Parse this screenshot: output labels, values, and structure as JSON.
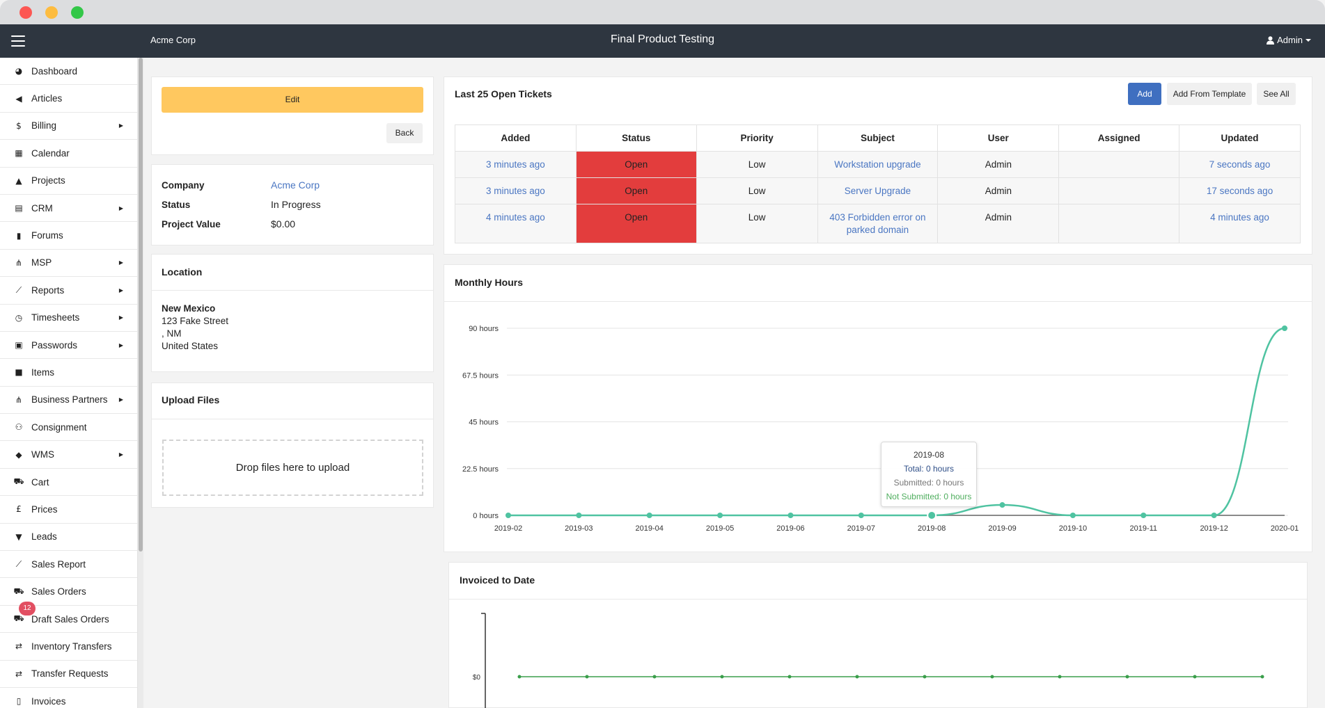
{
  "window": {
    "controls": {
      "close": "#fc5753",
      "minimize": "#fdbc40",
      "zoom": "#33c748"
    }
  },
  "topnav": {
    "brand": "Acme Corp",
    "title": "Final Product Testing",
    "user": "Admin"
  },
  "sidebar": {
    "items": [
      {
        "label": "Dashboard",
        "icon": "dashboard-icon",
        "glyph": "◕",
        "submenu": false
      },
      {
        "label": "Articles",
        "icon": "megaphone-icon",
        "glyph": "◀",
        "submenu": false
      },
      {
        "label": "Billing",
        "icon": "dollar-icon",
        "glyph": "$",
        "submenu": true
      },
      {
        "label": "Calendar",
        "icon": "calendar-icon",
        "glyph": "▦",
        "submenu": false
      },
      {
        "label": "Projects",
        "icon": "projects-icon",
        "glyph": "▲",
        "submenu": false
      },
      {
        "label": "CRM",
        "icon": "address-card-icon",
        "glyph": "▤",
        "submenu": true
      },
      {
        "label": "Forums",
        "icon": "book-icon",
        "glyph": "▮",
        "submenu": false
      },
      {
        "label": "MSP",
        "icon": "sitemap-icon",
        "glyph": "⋔",
        "submenu": true
      },
      {
        "label": "Reports",
        "icon": "line-chart-icon",
        "glyph": "⟋",
        "submenu": true
      },
      {
        "label": "Timesheets",
        "icon": "clock-icon",
        "glyph": "◷",
        "submenu": true
      },
      {
        "label": "Passwords",
        "icon": "lock-icon",
        "glyph": "▣",
        "submenu": true
      },
      {
        "label": "Items",
        "icon": "briefcase-icon",
        "glyph": "■",
        "submenu": false
      },
      {
        "label": "Business Partners",
        "icon": "sitemap-icon",
        "glyph": "⋔",
        "submenu": true
      },
      {
        "label": "Consignment",
        "icon": "handshake-icon",
        "glyph": "⚇",
        "submenu": false
      },
      {
        "label": "WMS",
        "icon": "boxes-icon",
        "glyph": "◆",
        "submenu": true
      },
      {
        "label": "Cart",
        "icon": "cart-icon",
        "glyph": "⛟",
        "submenu": false
      },
      {
        "label": "Prices",
        "icon": "pound-icon",
        "glyph": "£",
        "submenu": false
      },
      {
        "label": "Leads",
        "icon": "funnel-icon",
        "glyph": "▼",
        "submenu": false
      },
      {
        "label": "Sales Report",
        "icon": "line-chart-icon",
        "glyph": "⟋",
        "submenu": false
      },
      {
        "label": "Sales Orders",
        "icon": "cart-icon",
        "glyph": "⛟",
        "submenu": false
      },
      {
        "label": "Draft Sales Orders",
        "icon": "cart-icon",
        "glyph": "⛟",
        "submenu": false,
        "badge": "12"
      },
      {
        "label": "Inventory Transfers",
        "icon": "exchange-icon",
        "glyph": "⇄",
        "submenu": false
      },
      {
        "label": "Transfer Requests",
        "icon": "exchange-icon",
        "glyph": "⇄",
        "submenu": false
      },
      {
        "label": "Invoices",
        "icon": "file-invoice-icon",
        "glyph": "▯",
        "submenu": false
      }
    ]
  },
  "project": {
    "edit_label": "Edit",
    "back_label": "Back",
    "company_label": "Company",
    "company_value": "Acme Corp",
    "status_label": "Status",
    "status_value": "In Progress",
    "value_label": "Project Value",
    "value_value": "$0.00"
  },
  "location": {
    "title": "Location",
    "name": "New Mexico",
    "street": "123 Fake Street",
    "region": ", NM",
    "country": "United States"
  },
  "upload": {
    "title": "Upload Files",
    "dropzone_text": "Drop files here to upload"
  },
  "tickets": {
    "title": "Last 25 Open Tickets",
    "add_label": "Add",
    "template_label": "Add From Template",
    "see_all_label": "See All",
    "columns": [
      "Added",
      "Status",
      "Priority",
      "Subject",
      "User",
      "Assigned",
      "Updated"
    ],
    "rows": [
      {
        "added": "3 minutes ago",
        "status": "Open",
        "priority": "Low",
        "subject": "Workstation upgrade",
        "user": "Admin",
        "assigned": "",
        "updated": "7 seconds ago"
      },
      {
        "added": "3 minutes ago",
        "status": "Open",
        "priority": "Low",
        "subject": "Server Upgrade",
        "user": "Admin",
        "assigned": "",
        "updated": "17 seconds ago"
      },
      {
        "added": "4 minutes ago",
        "status": "Open",
        "priority": "Low",
        "subject": "403 Forbidden error on parked domain",
        "user": "Admin",
        "assigned": "",
        "updated": "4 minutes ago"
      }
    ],
    "status_color": "#e33d3d"
  },
  "monthly_hours": {
    "title": "Monthly Hours",
    "tooltip": {
      "title": "2019-08",
      "total": "Total: 0 hours",
      "submitted": "Submitted: 0 hours",
      "not_submitted": "Not Submitted: 0 hours"
    }
  },
  "invoiced": {
    "title": "Invoiced to Date"
  },
  "chart_data": [
    {
      "type": "line",
      "title": "Monthly Hours",
      "x": [
        "2019-02",
        "2019-03",
        "2019-04",
        "2019-05",
        "2019-06",
        "2019-07",
        "2019-08",
        "2019-09",
        "2019-10",
        "2019-11",
        "2019-12",
        "2020-01"
      ],
      "y_ticks": [
        "0 hours",
        "22.5 hours",
        "45 hours",
        "67.5 hours",
        "90 hours"
      ],
      "ylim": [
        0,
        90
      ],
      "series": [
        {
          "values": [
            0,
            0,
            0,
            0,
            0,
            0,
            0,
            5,
            0,
            0,
            0,
            90
          ],
          "color": "#4fc3a1"
        },
        {
          "values": [
            0,
            0,
            0,
            0,
            0,
            0,
            0,
            0,
            0,
            0,
            0,
            0
          ],
          "color": "#8a8a8a"
        }
      ],
      "grid": true,
      "highlight": "2019-08"
    },
    {
      "type": "line",
      "title": "Invoiced to Date",
      "y_ticks": [
        "$0"
      ],
      "series": [
        {
          "values": [
            0,
            0,
            0,
            0,
            0,
            0,
            0,
            0,
            0,
            0,
            0,
            0
          ],
          "color": "#3a9e4a"
        }
      ]
    }
  ]
}
